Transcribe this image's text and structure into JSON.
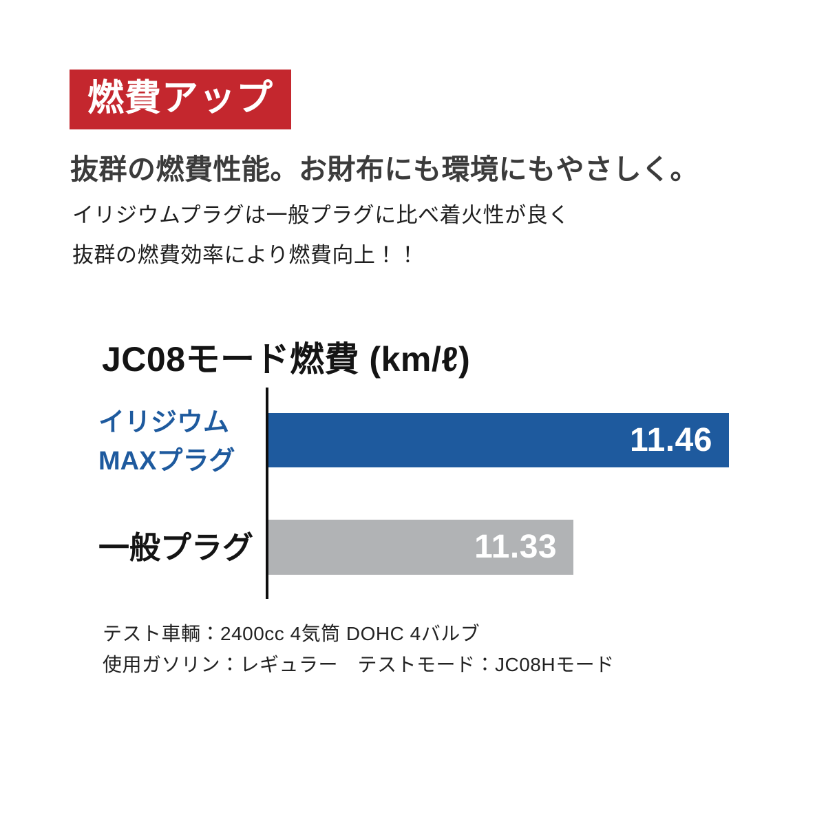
{
  "page": {
    "background_color": "#ffffff"
  },
  "badge": {
    "label": "燃費アップ",
    "bg_color": "#c4272e",
    "text_color": "#ffffff"
  },
  "headline": "抜群の燃費性能。お財布にも環境にもやさしく。",
  "description": {
    "line1": "イリジウムプラグは一般プラグに比べ着火性が良く",
    "line2": "抜群の燃費効率により燃費向上！！"
  },
  "chart_data": {
    "type": "bar",
    "orientation": "horizontal",
    "title": "JC08モード燃費 (km/ℓ)",
    "categories": [
      "イリジウムMAXプラグ",
      "一般プラグ"
    ],
    "values": [
      11.46,
      11.33
    ],
    "series": [
      {
        "name": "イリジウムMAXプラグ",
        "label_line1": "イリジウム",
        "label_line2": "MAXプラグ",
        "value": 11.46,
        "value_label": "11.46",
        "bar_color": "#1e5a9e",
        "label_color": "#1e5a9e",
        "value_text_color": "#ffffff"
      },
      {
        "name": "一般プラグ",
        "label_line1": "一般プラグ",
        "label_line2": "",
        "value": 11.33,
        "value_label": "11.33",
        "bar_color": "#b1b3b5",
        "label_color": "#141414",
        "value_text_color": "#ffffff"
      }
    ],
    "xlim": [
      11.075,
      11.46
    ],
    "grid": false,
    "legend": false,
    "value_labels_inside_bars": true,
    "axis_line_color": "#0d0d0d"
  },
  "footnotes": {
    "line1": "テスト車輌：2400cc 4気筒 DOHC 4バルブ",
    "line2": "使用ガソリン：レギュラー　テストモード：JC08Hモード"
  }
}
